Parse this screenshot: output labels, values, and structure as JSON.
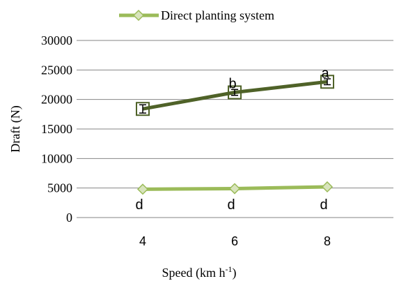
{
  "chart_data": {
    "type": "line",
    "xlabel": "Speed (km h",
    "xlabel_sup": "-1",
    "xlabel_close": ")",
    "ylabel": "Draft (N)",
    "x": [
      4,
      6,
      8
    ],
    "x_tick_labels": [
      "4",
      "6",
      "8"
    ],
    "ylim": [
      0,
      30000
    ],
    "y_ticks": [
      0,
      5000,
      10000,
      15000,
      20000,
      25000,
      30000
    ],
    "y_tick_labels": [
      "0",
      "5000",
      "10000",
      "15000",
      "20000",
      "25000",
      "30000"
    ],
    "grid": true,
    "legend_position": "top",
    "series": [
      {
        "values": [
          18400,
          21200,
          23000
        ],
        "color": "#4f6228",
        "marker": "square",
        "error_bars": [
          700,
          500,
          500
        ],
        "point_labels": [
          "",
          "b",
          "a"
        ]
      },
      {
        "name": "Direct planting system",
        "values": [
          4800,
          4900,
          5200
        ],
        "color": "#9bbb59",
        "marker": "diamond",
        "point_labels": [
          "d",
          "d",
          "d"
        ]
      }
    ]
  }
}
